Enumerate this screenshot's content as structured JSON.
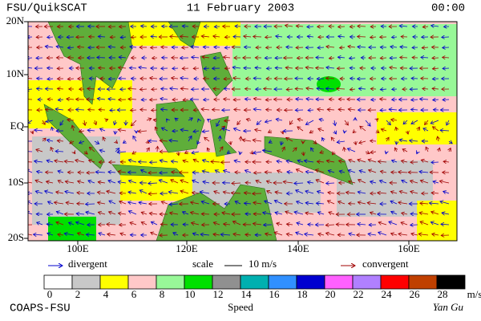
{
  "header": {
    "product": "FSU/QuikSCAT",
    "date": "11 February 2003",
    "time": "00:00"
  },
  "map": {
    "lat_labels": [
      "20N",
      "10N",
      "EQ",
      "10S",
      "20S"
    ],
    "lon_labels": [
      "100E",
      "120E",
      "140E",
      "160E"
    ]
  },
  "legend": {
    "divergent": "divergent",
    "scale": "scale",
    "scale_value": "10 m/s",
    "convergent": "convergent",
    "divergent_color": "#0000cc",
    "convergent_color": "#a00000"
  },
  "colorbar": {
    "colors": [
      "#ffffff",
      "#c8c8c8",
      "#ffff00",
      "#ffc8c8",
      "#98f898",
      "#00e000",
      "#909090",
      "#00b0b0",
      "#3090ff",
      "#0000d0",
      "#ff60ff",
      "#b080ff",
      "#ff0000",
      "#c04000",
      "#000000"
    ],
    "labels": [
      0,
      2,
      4,
      6,
      8,
      10,
      12,
      14,
      16,
      18,
      20,
      22,
      24,
      26,
      28
    ],
    "unit": "m/s",
    "title": "Speed"
  },
  "footer": {
    "left": "COAPS-FSU",
    "right": "Yan Gu"
  }
}
